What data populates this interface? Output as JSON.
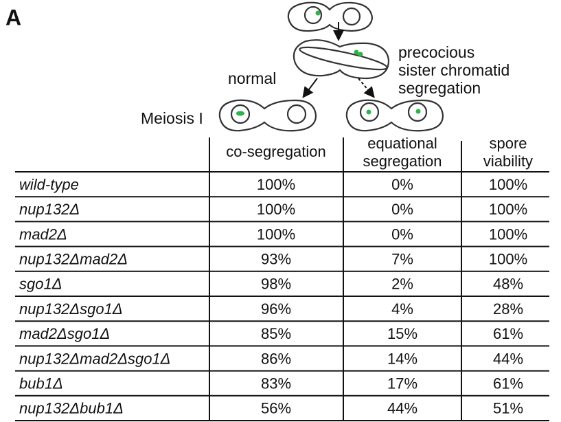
{
  "panel_label": "A",
  "diagram": {
    "precocious_label": [
      "precocious",
      "sister chromatid",
      "segregation"
    ],
    "normal_label": "normal",
    "stage_label": "Meiosis I"
  },
  "table": {
    "header": [
      [
        "co-segregation"
      ],
      [
        "equational",
        "segregation"
      ],
      [
        "spore",
        "viability"
      ]
    ],
    "rows": [
      [
        "wild-type",
        "100%",
        "0%",
        "100%"
      ],
      [
        "nup132Δ",
        "100%",
        "0%",
        "100%"
      ],
      [
        "mad2Δ",
        "100%",
        "0%",
        "100%"
      ],
      [
        "nup132Δmad2Δ",
        "93%",
        "7%",
        "100%"
      ],
      [
        "sgo1Δ",
        "98%",
        "2%",
        "48%"
      ],
      [
        "nup132Δsgo1Δ",
        "96%",
        "4%",
        "28%"
      ],
      [
        "mad2Δsgo1Δ",
        "85%",
        "15%",
        "61%"
      ],
      [
        "nup132Δmad2Δsgo1Δ",
        "86%",
        "14%",
        "44%"
      ],
      [
        "bub1Δ",
        "83%",
        "17%",
        "61%"
      ],
      [
        "nup132Δbub1Δ",
        "56%",
        "44%",
        "51%"
      ]
    ]
  }
}
